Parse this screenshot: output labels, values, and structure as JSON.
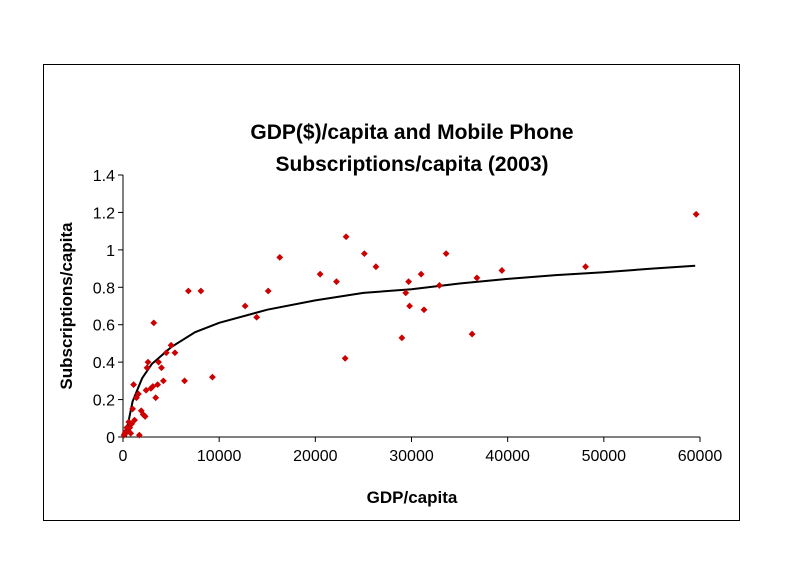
{
  "chart_data": {
    "type": "scatter",
    "title_lines": [
      "GDP($)/capita and Mobile Phone",
      "Subscriptions/capita (2003)"
    ],
    "xlabel": "GDP/capita",
    "ylabel": "Subscriptions/capita",
    "xlim": [
      0,
      60000
    ],
    "ylim": [
      0,
      1.4
    ],
    "x_ticks": [
      0,
      10000,
      20000,
      30000,
      40000,
      50000,
      60000
    ],
    "y_ticks": [
      0,
      0.2,
      0.4,
      0.6,
      0.8,
      1,
      1.2,
      1.4
    ],
    "x_tick_labels": [
      "0",
      "10000",
      "20000",
      "30000",
      "40000",
      "50000",
      "60000"
    ],
    "y_tick_labels": [
      "0",
      "0.2",
      "0.4",
      "0.6",
      "0.8",
      "1",
      "1.2",
      "1.4"
    ],
    "grid": false,
    "legend": "none",
    "marker_color": "#cc0000",
    "trendline_color": "#000000",
    "trendline": {
      "type": "logarithmic",
      "points": [
        [
          300,
          0.0
        ],
        [
          500,
          0.065
        ],
        [
          1000,
          0.19
        ],
        [
          2000,
          0.315
        ],
        [
          3000,
          0.39
        ],
        [
          5000,
          0.48
        ],
        [
          7500,
          0.56
        ],
        [
          10000,
          0.61
        ],
        [
          15000,
          0.68
        ],
        [
          20000,
          0.73
        ],
        [
          25000,
          0.77
        ],
        [
          30000,
          0.79
        ],
        [
          35000,
          0.82
        ],
        [
          40000,
          0.845
        ],
        [
          45000,
          0.865
        ],
        [
          50000,
          0.88
        ],
        [
          55000,
          0.9
        ],
        [
          59500,
          0.915
        ]
      ]
    },
    "points": [
      [
        100,
        0.01
      ],
      [
        200,
        0.02
      ],
      [
        300,
        0.03
      ],
      [
        400,
        0.05
      ],
      [
        500,
        0.03
      ],
      [
        600,
        0.08
      ],
      [
        700,
        0.05
      ],
      [
        800,
        0.02
      ],
      [
        900,
        0.07
      ],
      [
        1000,
        0.15
      ],
      [
        1100,
        0.28
      ],
      [
        1200,
        0.09
      ],
      [
        1400,
        0.21
      ],
      [
        1600,
        0.23
      ],
      [
        1700,
        0.01
      ],
      [
        1900,
        0.14
      ],
      [
        2100,
        0.12
      ],
      [
        2300,
        0.11
      ],
      [
        2400,
        0.25
      ],
      [
        2500,
        0.37
      ],
      [
        2600,
        0.4
      ],
      [
        2900,
        0.26
      ],
      [
        3100,
        0.27
      ],
      [
        3200,
        0.61
      ],
      [
        3400,
        0.21
      ],
      [
        3600,
        0.28
      ],
      [
        3700,
        0.4
      ],
      [
        4000,
        0.37
      ],
      [
        4200,
        0.3
      ],
      [
        4500,
        0.45
      ],
      [
        5000,
        0.49
      ],
      [
        5400,
        0.45
      ],
      [
        6400,
        0.3
      ],
      [
        6800,
        0.78
      ],
      [
        8100,
        0.78
      ],
      [
        9300,
        0.32
      ],
      [
        12700,
        0.7
      ],
      [
        13900,
        0.64
      ],
      [
        15100,
        0.78
      ],
      [
        16300,
        0.96
      ],
      [
        20500,
        0.87
      ],
      [
        22200,
        0.83
      ],
      [
        23100,
        0.42
      ],
      [
        23200,
        1.07
      ],
      [
        25100,
        0.98
      ],
      [
        26300,
        0.91
      ],
      [
        29000,
        0.53
      ],
      [
        29400,
        0.77
      ],
      [
        29700,
        0.83
      ],
      [
        29800,
        0.7
      ],
      [
        31000,
        0.87
      ],
      [
        31300,
        0.68
      ],
      [
        32900,
        0.81
      ],
      [
        33600,
        0.98
      ],
      [
        36300,
        0.55
      ],
      [
        36800,
        0.85
      ],
      [
        39400,
        0.89
      ],
      [
        48100,
        0.91
      ],
      [
        59600,
        1.19
      ]
    ]
  }
}
